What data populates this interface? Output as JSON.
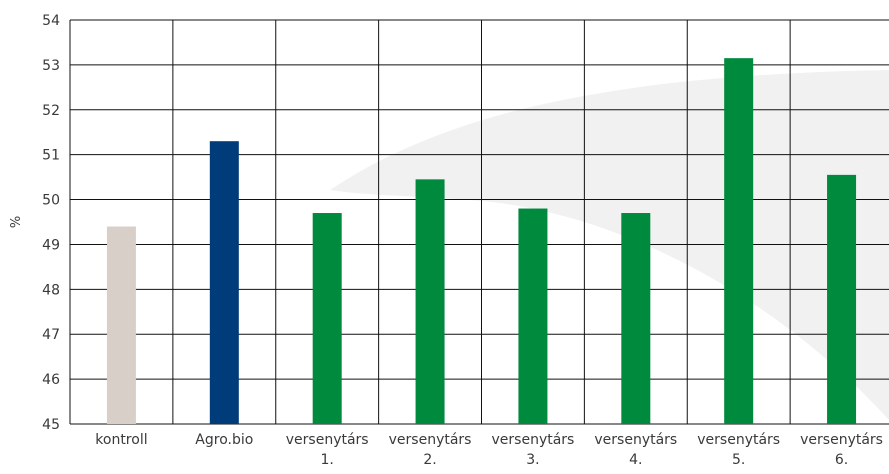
{
  "chart_data": {
    "type": "bar",
    "title": "",
    "xlabel": "",
    "ylabel": "%",
    "ylim": [
      45,
      54
    ],
    "yticks": [
      45,
      46,
      47,
      48,
      49,
      50,
      51,
      52,
      53,
      54
    ],
    "grid": true,
    "legend": "none",
    "categories": [
      [
        "kontroll"
      ],
      [
        "Agro.bio"
      ],
      [
        "versenytárs",
        "1."
      ],
      [
        "versenytárs",
        "2."
      ],
      [
        "versenytárs",
        "3."
      ],
      [
        "versenytárs",
        "4."
      ],
      [
        "versenytárs",
        "5."
      ],
      [
        "versenytárs",
        "6."
      ]
    ],
    "values": [
      49.4,
      51.3,
      49.7,
      50.45,
      49.8,
      49.7,
      53.15,
      50.55
    ],
    "colors": [
      "#d9cfc9",
      "#003b7a",
      "#008a3e",
      "#008a3e",
      "#008a3e",
      "#008a3e",
      "#008a3e",
      "#008a3e"
    ],
    "grid_color": "#111111",
    "watermark_color": "#f1f1f1"
  }
}
